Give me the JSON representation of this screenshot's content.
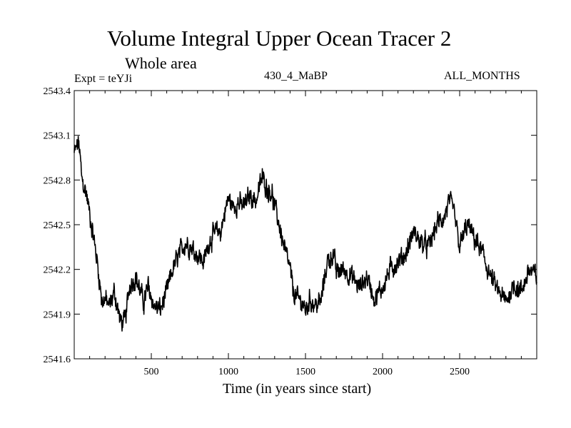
{
  "chart_data": {
    "type": "line",
    "title": "Volume Integral Upper Ocean Tracer 2",
    "subtitle": "Whole area",
    "annotations": {
      "left": "Expt = teYJi",
      "center": "430_4_MaBP",
      "right": "ALL_MONTHS"
    },
    "xlabel": "Time (in years since start)",
    "ylabel": "",
    "xlim": [
      0,
      3000
    ],
    "ylim": [
      2541.6,
      2543.4
    ],
    "xticks": [
      500,
      1000,
      1500,
      2000,
      2500
    ],
    "yticks": [
      2541.6,
      2541.9,
      2542.2,
      2542.5,
      2542.8,
      2543.1,
      2543.4
    ],
    "ytick_labels": [
      "2541.6",
      "2541.9",
      "2542.2",
      "2542.5",
      "2542.8",
      "2543.1",
      "2543.4"
    ],
    "series": [
      {
        "name": "Volume Integral Upper Ocean Tracer 2",
        "x": [
          0,
          30,
          50,
          80,
          120,
          150,
          180,
          200,
          230,
          260,
          300,
          330,
          360,
          400,
          450,
          480,
          520,
          560,
          600,
          640,
          680,
          720,
          760,
          800,
          840,
          880,
          920,
          950,
          980,
          1000,
          1030,
          1060,
          1100,
          1140,
          1180,
          1220,
          1250,
          1280,
          1300,
          1330,
          1360,
          1400,
          1420,
          1450,
          1480,
          1500,
          1530,
          1560,
          1600,
          1640,
          1680,
          1700,
          1750,
          1800,
          1850,
          1900,
          1950,
          2000,
          2050,
          2100,
          2150,
          2200,
          2250,
          2300,
          2350,
          2400,
          2430,
          2460,
          2500,
          2550,
          2600,
          2650,
          2700,
          2750,
          2800,
          2850,
          2900,
          2950,
          3000
        ],
        "values": [
          2542.98,
          2543.05,
          2542.8,
          2542.7,
          2542.45,
          2542.25,
          2541.98,
          2542.0,
          2541.95,
          2542.05,
          2541.85,
          2541.85,
          2542.1,
          2542.15,
          2541.98,
          2542.08,
          2541.95,
          2541.93,
          2542.05,
          2542.2,
          2542.3,
          2542.38,
          2542.35,
          2542.3,
          2542.25,
          2542.4,
          2542.45,
          2542.45,
          2542.6,
          2542.68,
          2542.62,
          2542.65,
          2542.62,
          2542.7,
          2542.66,
          2542.82,
          2542.75,
          2542.72,
          2542.62,
          2542.5,
          2542.35,
          2542.2,
          2542.05,
          2542.0,
          2541.98,
          2541.92,
          2542.0,
          2541.96,
          2541.98,
          2542.25,
          2542.3,
          2542.18,
          2542.2,
          2542.15,
          2542.08,
          2542.15,
          2542.0,
          2542.08,
          2542.2,
          2542.25,
          2542.3,
          2542.45,
          2542.38,
          2542.35,
          2542.5,
          2542.55,
          2542.65,
          2542.6,
          2542.35,
          2542.5,
          2542.4,
          2542.3,
          2542.15,
          2542.05,
          2541.98,
          2542.1,
          2542.05,
          2542.2,
          2542.15
        ]
      }
    ]
  }
}
